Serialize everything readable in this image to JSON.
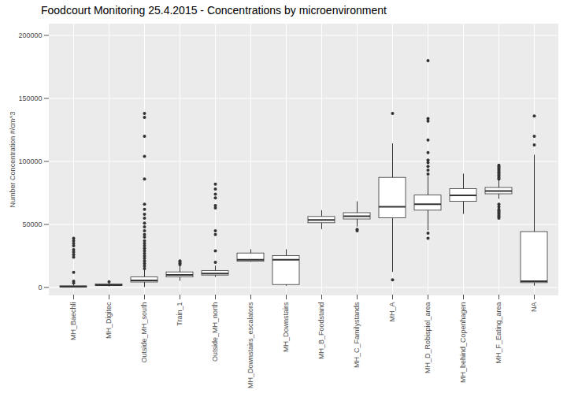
{
  "chart_data": {
    "type": "box",
    "title": "Foodcourt Monitoring 25.4.2015 - Concentrations by microenvironment",
    "y_label": "Number Concentration #/cm^3",
    "categories": [
      "MH_Baechli",
      "MH_Digitec",
      "Outside_MH_south",
      "Train_1",
      "Outside_MH_north",
      "MH_Downstairs_escalators",
      "MH_Downstairs",
      "MH_B_Foodstand",
      "MH_C_Familystands",
      "MH_A",
      "MH_D_Robispiel_area",
      "MH_behind_Copenhagen",
      "MH_F_Eating_area",
      "NA"
    ],
    "whisker_low": [
      0,
      500,
      0,
      5000,
      8000,
      20000,
      1000,
      46000,
      48000,
      12000,
      45000,
      58000,
      70000,
      1000
    ],
    "q1": [
      0,
      1200,
      4000,
      8000,
      9500,
      20500,
      2000,
      51000,
      54000,
      55000,
      61000,
      68000,
      74000,
      3500
    ],
    "median": [
      500,
      1800,
      5500,
      10000,
      11000,
      22000,
      22000,
      53500,
      56500,
      64000,
      66000,
      73000,
      76500,
      5000
    ],
    "q3": [
      1000,
      2500,
      8000,
      12000,
      13000,
      27000,
      25000,
      56000,
      59000,
      87000,
      73000,
      78000,
      79000,
      44000
    ],
    "whisker_high": [
      2500,
      4000,
      14000,
      17000,
      17000,
      30000,
      30000,
      61000,
      68000,
      114000,
      88000,
      90000,
      85000,
      105000
    ],
    "outliers": [
      [
        39000,
        37000,
        35000,
        33000,
        30000,
        28000,
        26000,
        24000,
        12000,
        5000,
        3500
      ],
      [
        4500
      ],
      [
        138000,
        135000,
        120000,
        104000,
        86000,
        66000,
        62000,
        58000,
        55000,
        51000,
        48000,
        45000,
        42000,
        40000,
        37000,
        35000,
        33000,
        31000,
        29000,
        27000,
        25000,
        23000,
        21000,
        19000,
        17000,
        15000
      ],
      [
        18000,
        19000,
        20000,
        21000
      ],
      [
        82000,
        78000,
        74000,
        71000,
        65000,
        63000,
        45000,
        42000,
        29000,
        20000
      ],
      [],
      [],
      [],
      [
        45000,
        46000
      ],
      [
        138000,
        6000
      ],
      [
        180000,
        134000,
        132000,
        117000,
        107000,
        101000,
        99000,
        96000,
        93000,
        90000,
        43000,
        39000
      ],
      [],
      [
        97000,
        96000,
        95000,
        94000,
        93000,
        92000,
        91000,
        90000,
        89000,
        88000,
        87000,
        86000,
        66000,
        64000,
        62000,
        61000,
        60000,
        59000,
        58000,
        57000,
        56000,
        55000
      ],
      [
        113000,
        120000,
        136000
      ]
    ],
    "color": "#333333",
    "ylim": [
      -6000,
      209000
    ],
    "yticks": [
      0,
      50000,
      100000,
      150000,
      200000
    ],
    "grid": true
  }
}
